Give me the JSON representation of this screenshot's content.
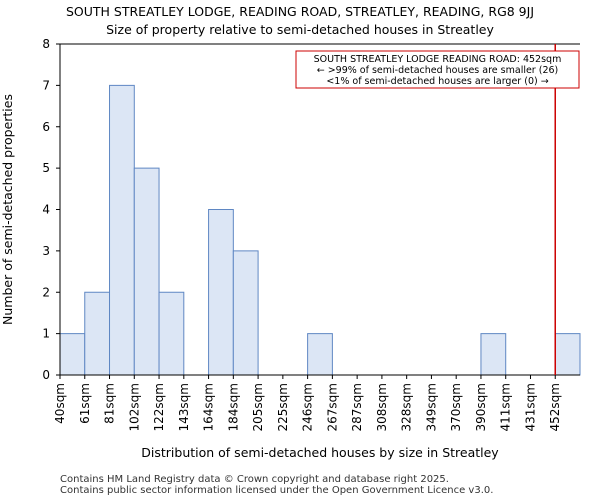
{
  "title": "SOUTH STREATLEY LODGE, READING ROAD, STREATLEY, READING, RG8 9JJ",
  "subtitle": "Size of property relative to semi-detached houses in Streatley",
  "footer": [
    "Contains HM Land Registry data © Crown copyright and database right 2025.",
    "Contains public sector information licensed under the Open Government Licence v3.0."
  ],
  "colors": {
    "bar_fill": "#dce6f5",
    "bar_stroke": "#5f87c3",
    "marker": "#cc0000"
  },
  "chart_data": {
    "type": "bar",
    "title": "Size of property relative to semi-detached houses in Streatley",
    "xlabel": "Distribution of semi-detached houses by size in Streatley",
    "ylabel": "Number of semi-detached properties",
    "categories": [
      "40sqm",
      "61sqm",
      "81sqm",
      "102sqm",
      "122sqm",
      "143sqm",
      "164sqm",
      "184sqm",
      "205sqm",
      "225sqm",
      "246sqm",
      "267sqm",
      "287sqm",
      "308sqm",
      "328sqm",
      "349sqm",
      "370sqm",
      "390sqm",
      "411sqm",
      "431sqm",
      "452sqm"
    ],
    "values": [
      1,
      2,
      7,
      5,
      2,
      0,
      4,
      3,
      0,
      0,
      1,
      0,
      0,
      0,
      0,
      0,
      0,
      1,
      0,
      0,
      1
    ],
    "ylim": [
      0,
      8
    ],
    "yticks": [
      0,
      1,
      2,
      3,
      4,
      5,
      6,
      7,
      8
    ],
    "marker": {
      "category_index": 20,
      "label": "SOUTH STREATLEY LODGE READING ROAD: 452sqm"
    },
    "annotation": [
      "SOUTH STREATLEY LODGE READING ROAD: 452sqm",
      "← >99% of semi-detached houses are smaller (26)",
      "<1% of semi-detached houses are larger (0) →"
    ]
  }
}
